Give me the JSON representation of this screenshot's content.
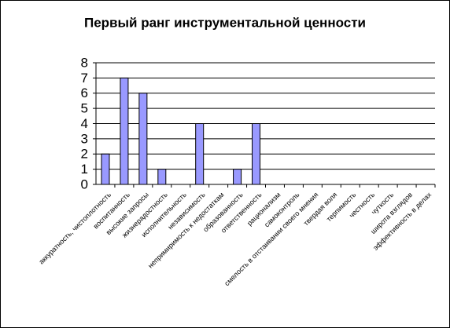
{
  "chart_data": {
    "type": "bar",
    "title": "Первый ранг инструментальной ценности",
    "categories": [
      "аккуратность, чистоплотность",
      "воспитанность",
      "высокие запросы",
      "жизнерадостность",
      "исполнительность",
      "независимость",
      "непримиримость к недостаткам",
      "образованность",
      "ответственность",
      "рационализм",
      "самоконтроль",
      "смелость в отстаивании своего мнения",
      "твердая воля",
      "терпимость",
      "честность",
      "чуткость",
      "широта взглядов",
      "эффективность в делах"
    ],
    "values": [
      2,
      7,
      6,
      1,
      0,
      4,
      0,
      1,
      4,
      0,
      0,
      0,
      0,
      0,
      0,
      0,
      0,
      0
    ],
    "color": "#9999ff",
    "ylim": [
      0,
      8
    ],
    "yticks": [
      0,
      1,
      2,
      3,
      4,
      5,
      6,
      7,
      8
    ],
    "grid": true
  }
}
